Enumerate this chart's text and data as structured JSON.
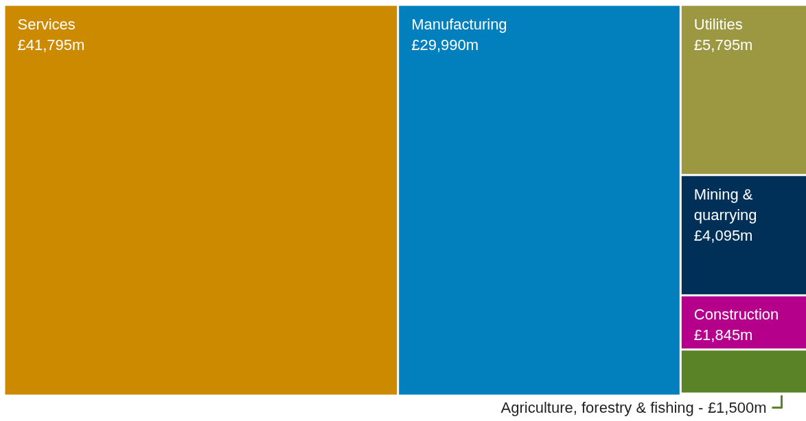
{
  "chart_data": {
    "type": "other",
    "categories": [
      "Services",
      "Manufacturing",
      "Utilities",
      "Mining & quarrying",
      "Construction",
      "Agriculture, forestry & fishing -"
    ],
    "values": [
      41795,
      29990,
      5795,
      4095,
      1845,
      1500
    ],
    "value_labels": [
      "£41,795m",
      "£29,990m",
      "£5,795m",
      "£4,095m",
      "£1,845m",
      "£1,500m"
    ],
    "colors": [
      "#cc8a00",
      "#027fbd",
      "#9c9741",
      "#003057",
      "#b5008c",
      "#5a8227"
    ]
  }
}
